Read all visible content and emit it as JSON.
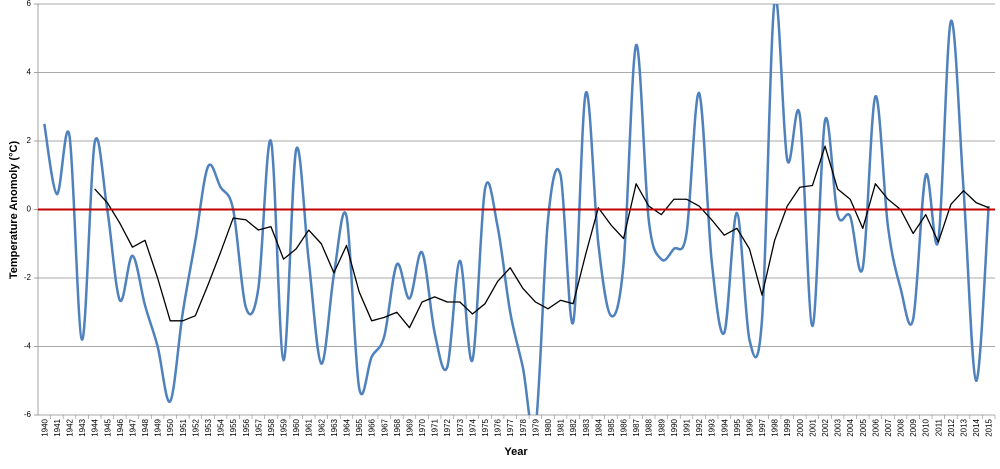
{
  "chart_data": {
    "type": "line",
    "y_label": "Temperature Anomoly (°C)",
    "x_label": "Year",
    "categories": [
      "1940",
      "1941",
      "1942",
      "1943",
      "1944",
      "1945",
      "1946",
      "1947",
      "1948",
      "1949",
      "1950",
      "1951",
      "1952",
      "1953",
      "1954",
      "1955",
      "1956",
      "1957",
      "1958",
      "1959",
      "1960",
      "1961",
      "1962",
      "1963",
      "1964",
      "1965",
      "1966",
      "1967",
      "1968",
      "1969",
      "1970",
      "1971",
      "1972",
      "1973",
      "1974",
      "1975",
      "1976",
      "1977",
      "1978",
      "1979",
      "1980",
      "1981",
      "1982",
      "1983",
      "1984",
      "1985",
      "1986",
      "1987",
      "1988",
      "1989",
      "1990",
      "1991",
      "1992",
      "1993",
      "1994",
      "1995",
      "1996",
      "1997",
      "1998",
      "1999",
      "2000",
      "2001",
      "2002",
      "2003",
      "2004",
      "2005",
      "2006",
      "2007",
      "2008",
      "2009",
      "2010",
      "2011",
      "2012",
      "2013",
      "2014",
      "2015"
    ],
    "series": [
      {
        "color": "#4f81bd",
        "smooth": true,
        "width": 2.5,
        "values": [
          2.5,
          0.45,
          2.15,
          -3.8,
          1.95,
          0.0,
          -2.65,
          -1.35,
          -2.8,
          -4.0,
          -5.6,
          -3.0,
          -0.9,
          1.25,
          0.65,
          0.0,
          -2.85,
          -2.3,
          2.0,
          -4.4,
          1.75,
          -1.5,
          -4.5,
          -1.9,
          -0.2,
          -5.2,
          -4.3,
          -3.7,
          -1.6,
          -2.6,
          -1.25,
          -3.6,
          -4.6,
          -1.5,
          -4.4,
          0.6,
          -0.5,
          -3.0,
          -4.6,
          -6.4,
          -0.3,
          1.0,
          -3.3,
          3.4,
          -1.0,
          -3.1,
          -1.6,
          4.8,
          -0.3,
          -1.45,
          -1.15,
          -0.7,
          3.4,
          -1.5,
          -3.6,
          -0.1,
          -3.8,
          -3.2,
          6.1,
          1.45,
          2.75,
          -3.4,
          2.6,
          -0.15,
          -0.2,
          -1.7,
          3.3,
          -0.5,
          -2.3,
          -3.2,
          1.0,
          -0.9,
          5.5,
          0.6,
          -5.0,
          0.1
        ]
      },
      {
        "color": "#000000",
        "smooth": false,
        "width": 1.3,
        "values": [
          null,
          null,
          null,
          null,
          0.6,
          0.2,
          -0.4,
          -1.1,
          -0.9,
          -2.0,
          -3.25,
          -3.25,
          -3.1,
          -2.2,
          -1.25,
          -0.25,
          -0.3,
          -0.6,
          -0.5,
          -1.45,
          -1.15,
          -0.6,
          -1.0,
          -1.85,
          -1.05,
          -2.4,
          -3.25,
          -3.15,
          -3.0,
          -3.45,
          -2.7,
          -2.55,
          -2.7,
          -2.7,
          -3.05,
          -2.75,
          -2.1,
          -1.7,
          -2.3,
          -2.7,
          -2.9,
          -2.65,
          -2.75,
          -1.3,
          0.05,
          -0.45,
          -0.85,
          0.75,
          0.1,
          -0.15,
          0.3,
          0.3,
          0.1,
          -0.3,
          -0.75,
          -0.55,
          -1.15,
          -2.5,
          -0.9,
          0.1,
          0.65,
          0.7,
          1.85,
          0.6,
          0.3,
          -0.55,
          0.75,
          0.3,
          0.0,
          -0.7,
          -0.15,
          -0.95,
          0.15,
          0.55,
          0.2,
          0.05
        ]
      }
    ],
    "ylim": [
      -6,
      6
    ],
    "yticks": [
      -6,
      -4,
      -2,
      0,
      2,
      4,
      6
    ],
    "grid": true,
    "hline": {
      "y": 0,
      "color": "#c00000"
    }
  }
}
